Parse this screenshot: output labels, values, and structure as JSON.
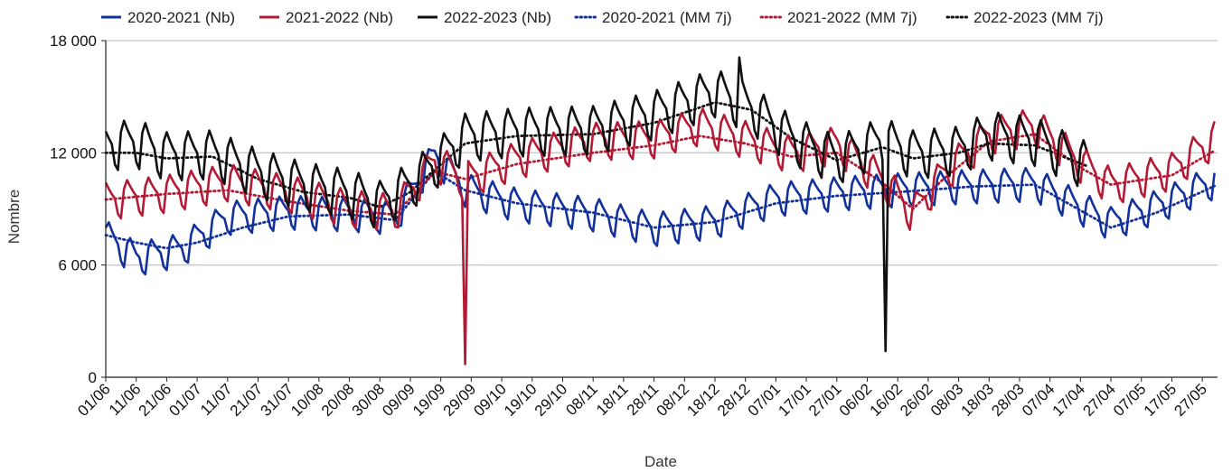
{
  "chart_data": {
    "type": "line",
    "title": "",
    "xlabel": "Date",
    "ylabel": "Nombre",
    "ylim": [
      0,
      18000
    ],
    "yticks": [
      0,
      6000,
      12000,
      18000
    ],
    "ytick_labels": [
      "0",
      "6 000",
      "12 000",
      "18 000"
    ],
    "grid": "horizontal",
    "legend": "top",
    "x_tick_labels": [
      "01/06",
      "11/06",
      "21/06",
      "01/07",
      "11/07",
      "21/07",
      "31/07",
      "10/08",
      "20/08",
      "30/08",
      "09/09",
      "19/09",
      "29/09",
      "09/10",
      "19/10",
      "29/10",
      "08/11",
      "18/11",
      "28/11",
      "08/12",
      "18/12",
      "28/12",
      "07/01",
      "17/01",
      "27/01",
      "06/02",
      "16/02",
      "26/02",
      "08/03",
      "18/03",
      "28/03",
      "07/04",
      "17/04",
      "27/04",
      "07/05",
      "17/05",
      "27/05"
    ],
    "x_tick_every_days": 10,
    "x_total_days": 365,
    "series": [
      {
        "name": "2020-2021 (Nb)",
        "color": "#13319a",
        "style": "solid",
        "base_points": [
          [
            0,
            7500
          ],
          [
            10,
            6300
          ],
          [
            25,
            6800
          ],
          [
            40,
            8500
          ],
          [
            60,
            8800
          ],
          [
            80,
            8700
          ],
          [
            95,
            8500
          ],
          [
            108,
            11800
          ],
          [
            118,
            10000
          ],
          [
            135,
            9200
          ],
          [
            160,
            8700
          ],
          [
            180,
            7900
          ],
          [
            200,
            8300
          ],
          [
            220,
            9500
          ],
          [
            240,
            9800
          ],
          [
            260,
            10000
          ],
          [
            285,
            10200
          ],
          [
            305,
            10300
          ],
          [
            330,
            8200
          ],
          [
            345,
            9100
          ],
          [
            365,
            10500
          ]
        ],
        "amplitude": 900,
        "min_day": 0,
        "max_day": 364
      },
      {
        "name": "2021-2022 (Nb)",
        "color": "#b31b34",
        "style": "solid",
        "base_points": [
          [
            0,
            9400
          ],
          [
            20,
            9800
          ],
          [
            40,
            10400
          ],
          [
            60,
            9800
          ],
          [
            80,
            9000
          ],
          [
            95,
            8800
          ],
          [
            108,
            11500
          ],
          [
            118,
            10500
          ],
          [
            135,
            11600
          ],
          [
            160,
            12600
          ],
          [
            180,
            12700
          ],
          [
            195,
            13400
          ],
          [
            210,
            12700
          ],
          [
            225,
            11900
          ],
          [
            240,
            12400
          ],
          [
            255,
            10500
          ],
          [
            265,
            8700
          ],
          [
            275,
            10800
          ],
          [
            290,
            12900
          ],
          [
            305,
            13400
          ],
          [
            320,
            11400
          ],
          [
            330,
            10200
          ],
          [
            350,
            11000
          ],
          [
            365,
            12800
          ]
        ],
        "amplitude": 1000,
        "min_day": 0,
        "max_day": 364,
        "spikes": [
          {
            "day": 118,
            "value": 700
          }
        ]
      },
      {
        "name": "2022-2023 (Nb)",
        "color": "#111111",
        "style": "solid",
        "base_points": [
          [
            0,
            12300
          ],
          [
            10,
            12500
          ],
          [
            20,
            11800
          ],
          [
            35,
            11900
          ],
          [
            50,
            10900
          ],
          [
            65,
            10200
          ],
          [
            80,
            9800
          ],
          [
            90,
            9200
          ],
          [
            100,
            10200
          ],
          [
            108,
            11300
          ],
          [
            118,
            12800
          ],
          [
            135,
            13100
          ],
          [
            160,
            13200
          ],
          [
            180,
            14000
          ],
          [
            200,
            15200
          ],
          [
            212,
            14300
          ],
          [
            225,
            12700
          ],
          [
            240,
            11600
          ],
          [
            255,
            12600
          ],
          [
            265,
            11900
          ],
          [
            280,
            12100
          ],
          [
            290,
            12900
          ],
          [
            305,
            12600
          ],
          [
            322,
            11300
          ]
        ],
        "amplitude": 1300,
        "min_day": 0,
        "max_day": 322,
        "spikes": [
          {
            "day": 256,
            "value": 1400
          },
          {
            "day": 208,
            "value": 17100
          }
        ]
      },
      {
        "name": "2020-2021 (MM 7j)",
        "color": "#13319a",
        "style": "dotted",
        "base_points": [
          [
            0,
            7600
          ],
          [
            10,
            7200
          ],
          [
            20,
            6900
          ],
          [
            30,
            7200
          ],
          [
            45,
            8000
          ],
          [
            60,
            8600
          ],
          [
            80,
            8700
          ],
          [
            95,
            8400
          ],
          [
            108,
            11000
          ],
          [
            118,
            10000
          ],
          [
            135,
            9300
          ],
          [
            160,
            8800
          ],
          [
            180,
            8000
          ],
          [
            200,
            8300
          ],
          [
            220,
            9300
          ],
          [
            240,
            9700
          ],
          [
            260,
            9900
          ],
          [
            285,
            10200
          ],
          [
            305,
            10300
          ],
          [
            330,
            8000
          ],
          [
            345,
            8800
          ],
          [
            365,
            10300
          ]
        ],
        "min_day": 0,
        "max_day": 364
      },
      {
        "name": "2021-2022 (MM 7j)",
        "color": "#b31b34",
        "style": "dotted",
        "base_points": [
          [
            0,
            9500
          ],
          [
            20,
            9800
          ],
          [
            40,
            10000
          ],
          [
            60,
            9400
          ],
          [
            80,
            8900
          ],
          [
            95,
            8700
          ],
          [
            108,
            11000
          ],
          [
            118,
            10600
          ],
          [
            135,
            11400
          ],
          [
            160,
            12000
          ],
          [
            180,
            12400
          ],
          [
            195,
            12900
          ],
          [
            210,
            12500
          ],
          [
            225,
            11800
          ],
          [
            240,
            12000
          ],
          [
            255,
            10400
          ],
          [
            265,
            9000
          ],
          [
            275,
            10600
          ],
          [
            290,
            12600
          ],
          [
            305,
            13000
          ],
          [
            320,
            11200
          ],
          [
            330,
            10300
          ],
          [
            350,
            10800
          ],
          [
            365,
            12200
          ]
        ],
        "min_day": 0,
        "max_day": 364
      },
      {
        "name": "2022-2023 (MM 7j)",
        "color": "#111111",
        "style": "dotted",
        "base_points": [
          [
            0,
            12000
          ],
          [
            10,
            12000
          ],
          [
            20,
            11700
          ],
          [
            35,
            11800
          ],
          [
            50,
            10600
          ],
          [
            65,
            9900
          ],
          [
            80,
            9600
          ],
          [
            90,
            9100
          ],
          [
            100,
            9900
          ],
          [
            108,
            11100
          ],
          [
            118,
            12500
          ],
          [
            135,
            12900
          ],
          [
            160,
            13000
          ],
          [
            180,
            13600
          ],
          [
            200,
            14700
          ],
          [
            212,
            14300
          ],
          [
            225,
            12800
          ],
          [
            240,
            11600
          ],
          [
            255,
            12300
          ],
          [
            265,
            11700
          ],
          [
            280,
            12000
          ],
          [
            290,
            12500
          ],
          [
            305,
            12400
          ],
          [
            322,
            11300
          ]
        ],
        "min_day": 0,
        "max_day": 322
      }
    ]
  }
}
